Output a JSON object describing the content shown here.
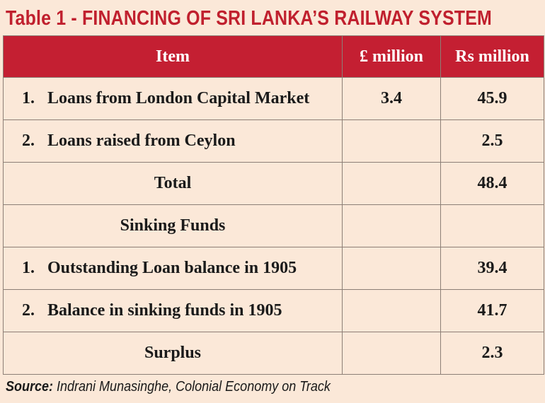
{
  "title": "Table 1 - FINANCING OF SRI LANKA’S RAILWAY SYSTEM",
  "headers": {
    "item": "Item",
    "gbp": "£ million",
    "rs": "Rs million"
  },
  "rows": [
    {
      "num": "1.",
      "label": "Loans from London Capital Market",
      "gbp": "3.4",
      "rs": "45.9"
    },
    {
      "num": "2.",
      "label": "Loans raised from Ceylon",
      "gbp": "",
      "rs": "2.5"
    },
    {
      "num": "",
      "label": "Total",
      "gbp": "",
      "rs": "48.4"
    },
    {
      "num": "",
      "label": "Sinking Funds",
      "gbp": "",
      "rs": ""
    },
    {
      "num": "1.",
      "label": "Outstanding Loan balance in 1905",
      "gbp": "",
      "rs": "39.4"
    },
    {
      "num": "2.",
      "label": "Balance in sinking funds in 1905",
      "gbp": "",
      "rs": "41.7"
    },
    {
      "num": "",
      "label": "Surplus",
      "gbp": "",
      "rs": "2.3"
    }
  ],
  "source": {
    "label": "Source:",
    "text": " Indrani Munasinghe, Colonial Economy on Track"
  },
  "colors": {
    "title": "#c0202e",
    "header_bg": "#c41f32",
    "background": "#fbe8d8"
  }
}
